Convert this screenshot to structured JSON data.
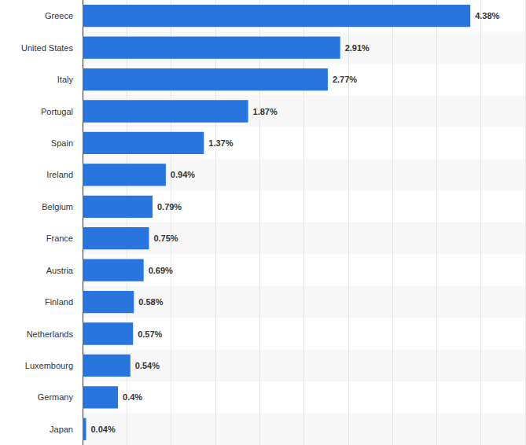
{
  "chart_data": {
    "type": "bar",
    "orientation": "horizontal",
    "categories": [
      "Greece",
      "United States",
      "Italy",
      "Portugal",
      "Spain",
      "Ireland",
      "Belgium",
      "France",
      "Austria",
      "Finland",
      "Netherlands",
      "Luxembourg",
      "Germany",
      "Japan"
    ],
    "values": [
      4.38,
      2.91,
      2.77,
      1.87,
      1.37,
      0.94,
      0.79,
      0.75,
      0.69,
      0.58,
      0.57,
      0.54,
      0.4,
      0.04
    ],
    "value_labels": [
      "4.38%",
      "2.91%",
      "2.77%",
      "1.87%",
      "1.37%",
      "0.94%",
      "0.79%",
      "0.75%",
      "0.69%",
      "0.58%",
      "0.57%",
      "0.54%",
      "0.4%",
      "0.04%"
    ],
    "color": "#2876dd",
    "xlim": [
      0,
      5
    ],
    "xticks": [
      0,
      0.5,
      1,
      1.5,
      2,
      2.5,
      3,
      3.5,
      4,
      4.5,
      5
    ],
    "grid": true,
    "data_labels": true,
    "tick_labels": "y"
  }
}
